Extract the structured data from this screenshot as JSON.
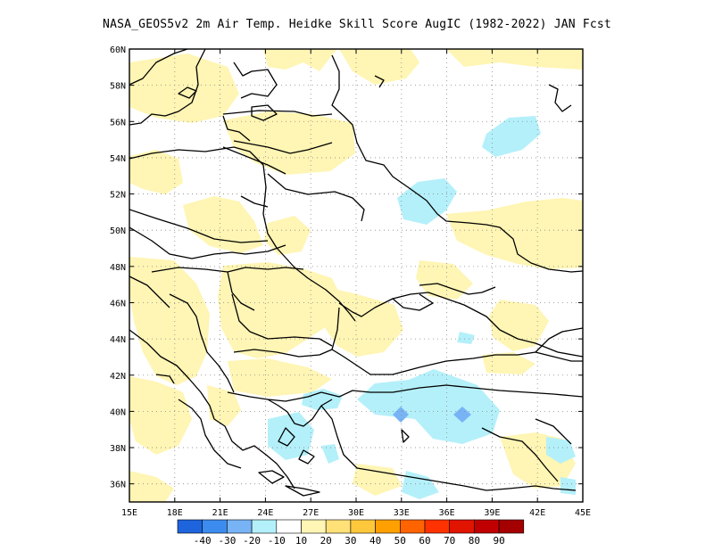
{
  "title": "NASA_GEOS5v2  2m Air Temp. Heidke Skill Score AugIC (1982-2022) JAN Fcst",
  "map": {
    "lon_range": [
      15,
      45
    ],
    "lat_range": [
      35,
      60
    ],
    "lon_ticks": [
      "15E",
      "18E",
      "21E",
      "24E",
      "27E",
      "30E",
      "33E",
      "36E",
      "39E",
      "42E",
      "45E"
    ],
    "lat_ticks": [
      "36N",
      "38N",
      "40N",
      "42N",
      "44N",
      "46N",
      "48N",
      "50N",
      "52N",
      "54N",
      "56N",
      "58N",
      "60N"
    ],
    "grid": "dotted"
  },
  "colorbar": {
    "labels": [
      "-40",
      "-30",
      "-20",
      "-10",
      "10",
      "20",
      "30",
      "40",
      "50",
      "60",
      "70",
      "80",
      "90"
    ],
    "colors": [
      "#1e64dc",
      "#3c8cf0",
      "#78b4f5",
      "#b4f0fa",
      "#ffffff",
      "#fff5b4",
      "#ffe178",
      "#ffc83c",
      "#ffa000",
      "#ff6400",
      "#ff3200",
      "#e11400",
      "#c00000",
      "#a50000"
    ]
  },
  "fill_colors": {
    "pos10": "#fff5b4",
    "neg10": "#b4f0fa",
    "neg20": "#78b4f5"
  }
}
